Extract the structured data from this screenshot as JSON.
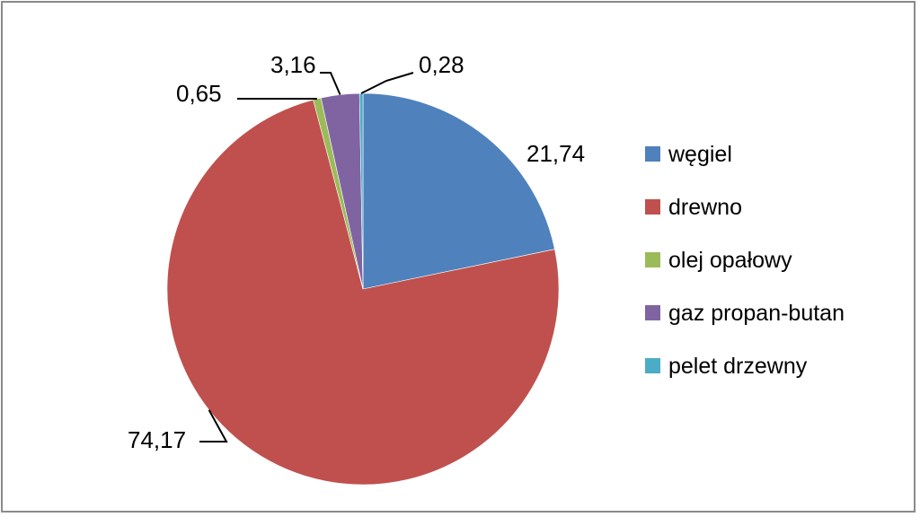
{
  "chart_data": {
    "type": "pie",
    "title": "",
    "legend_position": "right",
    "slices": [
      {
        "label": "węgiel",
        "value": 21.74,
        "display": "21,74",
        "color": "#4F81BD"
      },
      {
        "label": "drewno",
        "value": 74.17,
        "display": "74,17",
        "color": "#C0504D"
      },
      {
        "label": "olej opałowy",
        "value": 0.65,
        "display": "0,65",
        "color": "#9BBB59"
      },
      {
        "label": "gaz propan-butan",
        "value": 3.16,
        "display": "3,16",
        "color": "#8064A2"
      },
      {
        "label": "pelet drzewny",
        "value": 0.28,
        "display": "0,28",
        "color": "#4BACC6"
      }
    ]
  }
}
